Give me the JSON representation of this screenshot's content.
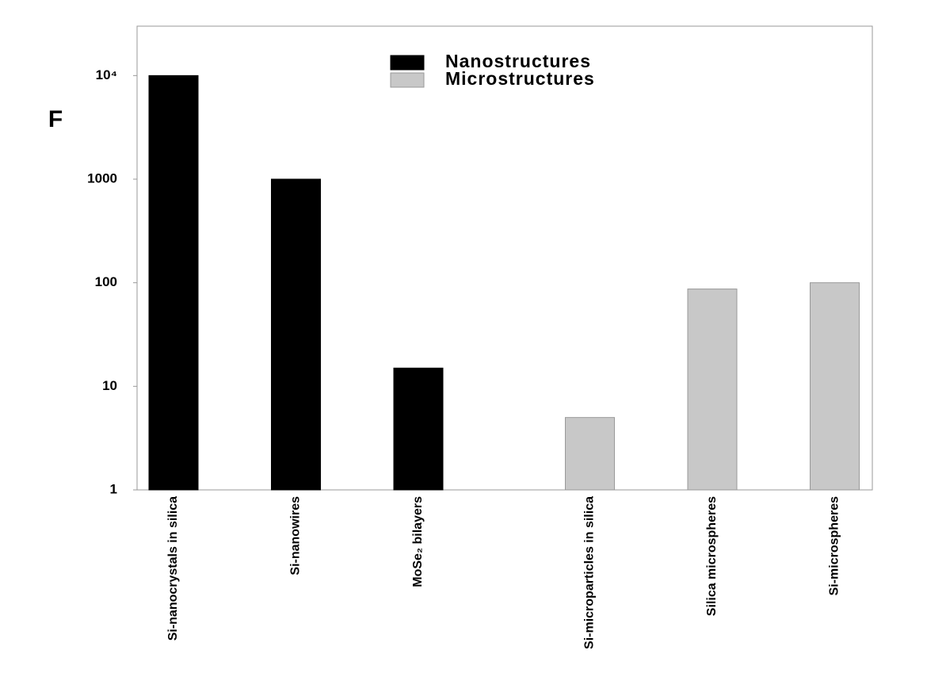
{
  "chart_data": {
    "type": "bar",
    "y_label": "F",
    "log_scale": true,
    "categories": [
      "Si-nanocrystals in silica",
      "Si-nanowires",
      "MoSe₂ bilayers",
      "Si-microparticles in silica",
      "Silica microspheres",
      "Si-microspheres"
    ],
    "series": [
      {
        "name": "Nanostructures",
        "color": "#000000",
        "values": [
          10000,
          1000,
          15,
          null,
          null,
          null
        ]
      },
      {
        "name": "Microstructures",
        "color": "#c8c8c8",
        "values": [
          null,
          null,
          null,
          5,
          87,
          100
        ]
      }
    ],
    "ylim": [
      1,
      30000
    ],
    "yticks": [
      1,
      10,
      100,
      1000,
      {
        "value": 10000,
        "label": "10⁴"
      }
    ],
    "grid": false
  }
}
